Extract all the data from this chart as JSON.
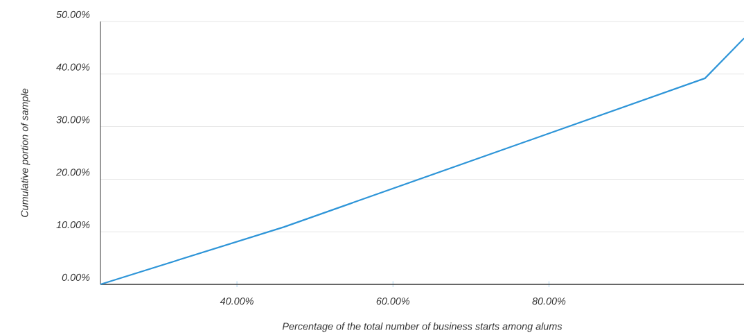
{
  "chart_data": {
    "type": "line",
    "xlabel": "Percentage of the total number of business starts among alums",
    "ylabel": "Cumulative portion of sample",
    "x": [
      22.5,
      46,
      100,
      105
    ],
    "series": [
      {
        "color": "#2e95d8",
        "values": [
          0,
          10.9,
          39.2,
          46.8
        ]
      }
    ],
    "xlim": [
      22.5,
      105
    ],
    "ylim": [
      0,
      50
    ],
    "xticks": [
      {
        "value": 40,
        "label": "40.00%"
      },
      {
        "value": 60,
        "label": "60.00%"
      },
      {
        "value": 80,
        "label": "80.00%"
      }
    ],
    "yticks": [
      {
        "value": 0,
        "label": "0.00%"
      },
      {
        "value": 10,
        "label": "10.00%"
      },
      {
        "value": 20,
        "label": "20.00%"
      },
      {
        "value": 30,
        "label": "30.00%"
      },
      {
        "value": 40,
        "label": "40.00%"
      },
      {
        "value": 50,
        "label": "50.00%"
      }
    ],
    "grid": "y"
  }
}
